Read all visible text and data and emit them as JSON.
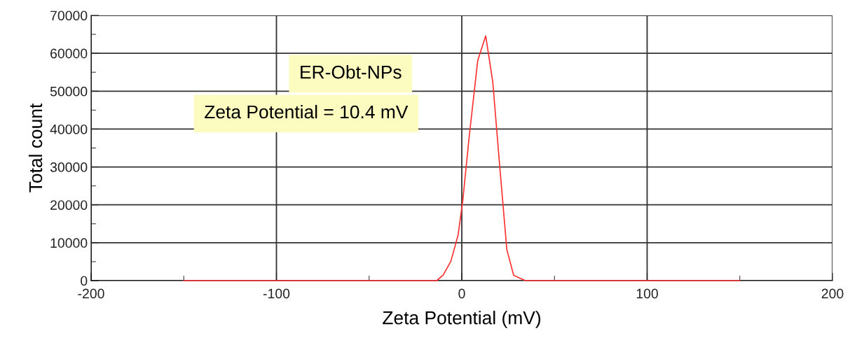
{
  "chart_data": {
    "type": "line",
    "xlabel": "Zeta Potential (mV)",
    "ylabel": "Total count",
    "annotations": [
      "ER-Obt-NPs",
      "Zeta Potential = 10.4 mV"
    ],
    "x": [
      -150,
      -13.5,
      -10,
      -5.9,
      -2,
      0.5,
      4,
      8.6,
      12.9,
      16.7,
      20.5,
      24.3,
      28,
      34.3,
      150
    ],
    "series": [
      {
        "color": "#ff3030",
        "values": [
          0,
          0,
          1500,
          5100,
          12000,
          21000,
          38000,
          58100,
          64600,
          52500,
          30000,
          8200,
          1400,
          0,
          0
        ]
      }
    ],
    "xlim": [
      -200,
      200
    ],
    "xticks": [
      -200,
      -100,
      0,
      100,
      200
    ],
    "ylim": [
      0,
      70000
    ],
    "yticks": [
      0,
      10000,
      20000,
      30000,
      40000,
      50000,
      60000,
      70000
    ],
    "grid": true,
    "legend": false,
    "marker": "none",
    "line_style": "solid"
  }
}
